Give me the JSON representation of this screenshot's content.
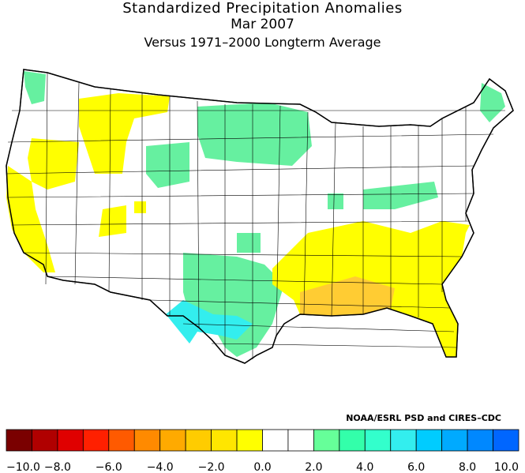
{
  "title": {
    "line1": "Standardized Precipitation Anomalies",
    "line2": "Mar 2007",
    "line3": "Versus 1971–2000 Longterm Average"
  },
  "credit": "NOAA/ESRL PSD and CIRES–CDC",
  "legend": {
    "bins": [
      {
        "color": "#7a0000"
      },
      {
        "color": "#b00000"
      },
      {
        "color": "#e00000"
      },
      {
        "color": "#ff2000"
      },
      {
        "color": "#ff5a00"
      },
      {
        "color": "#ff8a00"
      },
      {
        "color": "#ffaa00"
      },
      {
        "color": "#ffcc00"
      },
      {
        "color": "#ffe600"
      },
      {
        "color": "#ffff00"
      },
      {
        "color": "#ffffff"
      },
      {
        "color": "#ffffff"
      },
      {
        "color": "#66ff99"
      },
      {
        "color": "#33ffaa"
      },
      {
        "color": "#33ffcc"
      },
      {
        "color": "#33eeee"
      },
      {
        "color": "#00ccff"
      },
      {
        "color": "#00aaff"
      },
      {
        "color": "#0088ff"
      },
      {
        "color": "#0066ff"
      }
    ],
    "tick_labels": [
      "−10.0",
      "−8.0",
      "−6.0",
      "−4.0",
      "−2.0",
      "0.0",
      "2.0",
      "4.0",
      "6.0",
      "8.0",
      "10.0"
    ]
  },
  "colors": {
    "dry": "#ffff00",
    "very_dry": "#ffcc33",
    "wet": "#66f0a0",
    "very_wet": "#33eeee",
    "neutral": "#ffffff",
    "border": "#000000"
  }
}
